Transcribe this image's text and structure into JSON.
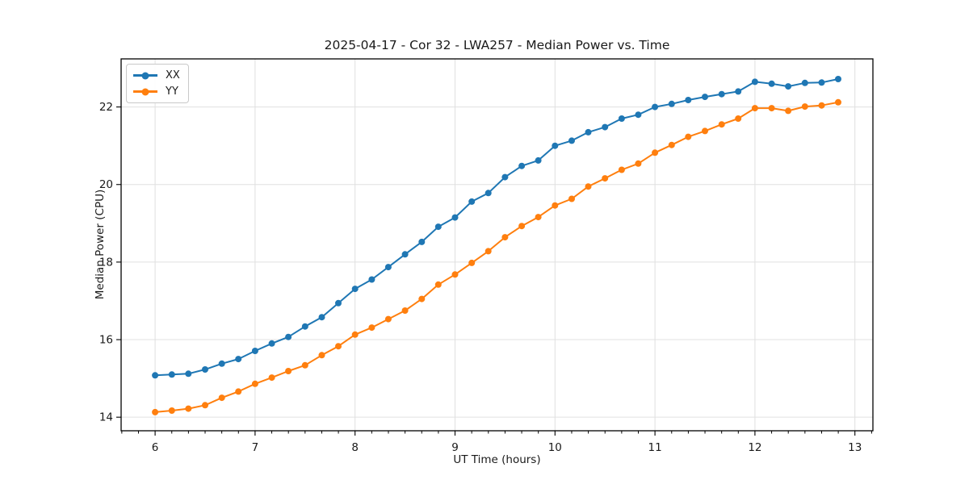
{
  "figure": {
    "title": "2025-04-17 - Cor 32 - LWA257 - Median Power vs. Time"
  },
  "chart_data": {
    "type": "line",
    "title": "2025-04-17 - Cor 32 - LWA257 - Median Power vs. Time",
    "xlabel": "UT Time (hours)",
    "ylabel": "Median Power (CPU)",
    "xlim": [
      5.66,
      13.18
    ],
    "ylim": [
      13.65,
      23.24
    ],
    "x_major_ticks": [
      6,
      7,
      8,
      9,
      10,
      11,
      12,
      13
    ],
    "x_minor_tick_step": 0.16667,
    "y_major_ticks": [
      14,
      16,
      18,
      20,
      22
    ],
    "grid": true,
    "grid_color": "#e0e0e0",
    "legend_position": "upper-left",
    "x": [
      6.0,
      6.167,
      6.333,
      6.5,
      6.667,
      6.833,
      7.0,
      7.167,
      7.333,
      7.5,
      7.667,
      7.833,
      8.0,
      8.167,
      8.333,
      8.5,
      8.667,
      8.833,
      9.0,
      9.167,
      9.333,
      9.5,
      9.667,
      9.833,
      10.0,
      10.167,
      10.333,
      10.5,
      10.667,
      10.833,
      11.0,
      11.167,
      11.333,
      11.5,
      11.667,
      11.833,
      12.0,
      12.167,
      12.333,
      12.5,
      12.667,
      12.833
    ],
    "series": [
      {
        "name": "XX",
        "color": "#1f77b4",
        "marker": "circle",
        "values": [
          15.08,
          15.1,
          15.12,
          15.23,
          15.38,
          15.5,
          15.71,
          15.9,
          16.07,
          16.34,
          16.58,
          16.94,
          17.31,
          17.55,
          17.87,
          18.2,
          18.52,
          18.91,
          19.15,
          19.56,
          19.78,
          20.19,
          20.48,
          20.62,
          21.0,
          21.13,
          21.35,
          21.48,
          21.7,
          21.8,
          22.0,
          22.08,
          22.18,
          22.26,
          22.33,
          22.4,
          22.65,
          22.6,
          22.53,
          22.62,
          22.63,
          22.72
        ]
      },
      {
        "name": "YY",
        "color": "#ff7f0e",
        "marker": "circle",
        "values": [
          14.13,
          14.17,
          14.22,
          14.31,
          14.5,
          14.66,
          14.86,
          15.02,
          15.19,
          15.34,
          15.6,
          15.83,
          16.13,
          16.31,
          16.53,
          16.75,
          17.05,
          17.42,
          17.68,
          17.98,
          18.28,
          18.64,
          18.93,
          19.16,
          19.46,
          19.63,
          19.95,
          20.16,
          20.38,
          20.54,
          20.82,
          21.02,
          21.23,
          21.38,
          21.55,
          21.7,
          21.97,
          21.97,
          21.9,
          22.01,
          22.04,
          22.12
        ]
      }
    ]
  }
}
